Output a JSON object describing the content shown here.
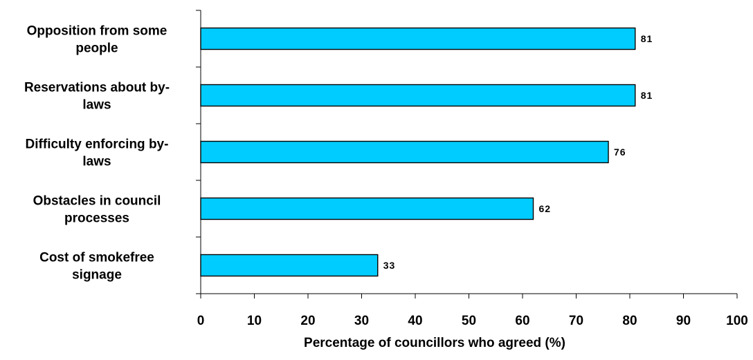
{
  "chart_data": {
    "type": "bar",
    "orientation": "horizontal",
    "categories": [
      [
        "Opposition from some",
        "people"
      ],
      [
        "Reservations about by-",
        "laws"
      ],
      [
        "Difficulty enforcing by-",
        "laws"
      ],
      [
        "Obstacles in council",
        "processes"
      ],
      [
        "Cost of smokefree",
        "signage"
      ]
    ],
    "values": [
      81,
      81,
      76,
      62,
      33
    ],
    "value_labels": [
      "81",
      "81",
      "76",
      "62",
      "33"
    ],
    "xlabel": "Percentage of councillors who agreed (%)",
    "xlim": [
      0,
      100
    ],
    "xticks": [
      0,
      10,
      20,
      30,
      40,
      50,
      60,
      70,
      80,
      90,
      100
    ],
    "bar_color": "#00ccff",
    "grid": false,
    "legend": "none"
  }
}
